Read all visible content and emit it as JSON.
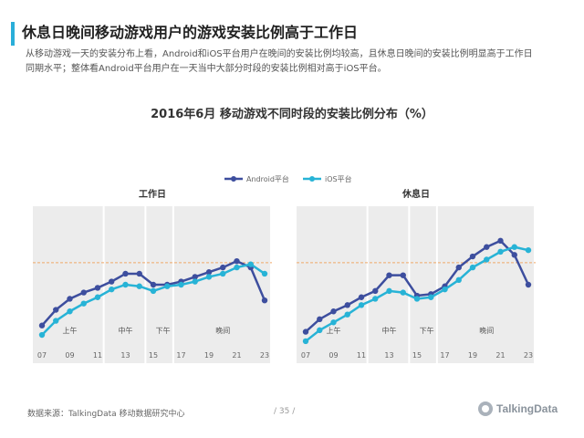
{
  "page": {
    "headline": "休息日晚间移动游戏用户的游戏安装比例高于工作日",
    "description": "从移动游戏一天的安装分布上看，Android和iOS平台用户在晚间的安装比例均较高，且休息日晚间的安装比例明显高于工作日同期水平；整体看Android平台用户在一天当中大部分时段的安装比例相对高于iOS平台。",
    "chart_title": "2016年6月  移动游戏不同时段的安装比例分布（%）",
    "source": "数据来源：TalkingData  移动数据研究中心",
    "page_number": "/  35  /",
    "logo_text": "TalkingData"
  },
  "colors": {
    "android": "#3d4e9e",
    "ios": "#27b3d6",
    "accent": "#2aaed9",
    "reference_line": "#f0a868",
    "band": "#ececec"
  },
  "legend": [
    "Android平台",
    "iOS平台"
  ],
  "chart_data": [
    {
      "type": "line",
      "title": "工作日",
      "x": [
        7,
        8,
        9,
        10,
        11,
        12,
        13,
        14,
        15,
        16,
        17,
        18,
        19,
        20,
        21,
        22,
        23
      ],
      "x_tick_labels": [
        "07",
        "09",
        "11",
        "13",
        "15",
        "17",
        "19",
        "21",
        "23"
      ],
      "periods": [
        "上午",
        "中午",
        "下午",
        "晚间"
      ],
      "series": [
        {
          "name": "Android平台",
          "values": [
            3.9,
            4.9,
            5.6,
            6.0,
            6.3,
            6.7,
            7.2,
            7.2,
            6.5,
            6.5,
            6.7,
            7.0,
            7.3,
            7.6,
            8.0,
            7.6,
            5.5
          ]
        },
        {
          "name": "iOS平台",
          "values": [
            3.3,
            4.2,
            4.8,
            5.3,
            5.7,
            6.2,
            6.5,
            6.4,
            6.1,
            6.4,
            6.5,
            6.7,
            7.0,
            7.2,
            7.6,
            7.8,
            7.2
          ]
        }
      ],
      "reference_value": 7.9
    },
    {
      "type": "line",
      "title": "休息日",
      "x": [
        7,
        8,
        9,
        10,
        11,
        12,
        13,
        14,
        15,
        16,
        17,
        18,
        19,
        20,
        21,
        22,
        23
      ],
      "x_tick_labels": [
        "07",
        "09",
        "11",
        "13",
        "15",
        "17",
        "19",
        "21",
        "23"
      ],
      "periods": [
        "上午",
        "中午",
        "下午",
        "晚间"
      ],
      "series": [
        {
          "name": "Android平台",
          "values": [
            3.5,
            4.3,
            4.8,
            5.2,
            5.7,
            6.1,
            7.1,
            7.1,
            5.8,
            5.9,
            6.4,
            7.6,
            8.3,
            8.9,
            9.3,
            8.4,
            6.5
          ]
        },
        {
          "name": "iOS平台",
          "values": [
            2.9,
            3.6,
            4.1,
            4.6,
            5.2,
            5.6,
            6.1,
            6.0,
            5.6,
            5.7,
            6.2,
            6.8,
            7.6,
            8.1,
            8.6,
            8.9,
            8.7
          ]
        }
      ],
      "reference_value": 7.9
    }
  ]
}
